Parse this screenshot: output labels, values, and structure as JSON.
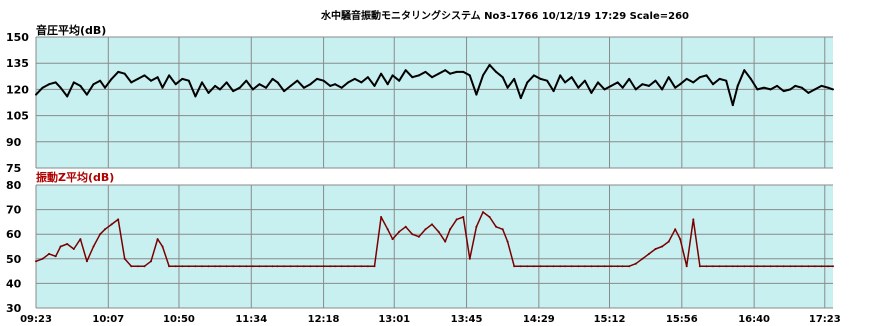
{
  "header": {
    "title": "水中騒音振動モニタリングシステム No3-1766 10/12/19 17:29 Scale=260"
  },
  "colors": {
    "plot_bg": "#c8f0f0",
    "grid": "#8a8a8a",
    "sound_line": "#000000",
    "sound_title": "#000000",
    "vib_line": "#7a0000",
    "vib_title": "#b00000"
  },
  "chart_data": [
    {
      "type": "line",
      "title": "音圧平均(dB)",
      "ylim": [
        75,
        150
      ],
      "yticks": [
        "150",
        "135",
        "120",
        "105",
        "90",
        "75"
      ],
      "xticks": [
        "09:23",
        "10:07",
        "10:50",
        "11:34",
        "12:18",
        "13:01",
        "13:45",
        "14:29",
        "15:12",
        "15:56",
        "16:40",
        "17:23"
      ],
      "x_range": [
        "09:23",
        "17:28"
      ],
      "grid": true,
      "series": [
        {
          "x": [
            "09:23",
            "09:27",
            "09:31",
            "09:35",
            "09:38",
            "09:42",
            "09:46",
            "09:50",
            "09:54",
            "09:58",
            "10:02",
            "10:05",
            "10:09",
            "10:13",
            "10:17",
            "10:21",
            "10:25",
            "10:29",
            "10:33",
            "10:37",
            "10:40",
            "10:44",
            "10:48",
            "10:52",
            "10:56",
            "11:00",
            "11:04",
            "11:08",
            "11:12",
            "11:15",
            "11:19",
            "11:23",
            "11:27",
            "11:31",
            "11:35",
            "11:39",
            "11:43",
            "11:47",
            "11:50",
            "11:54",
            "11:58",
            "12:02",
            "12:06",
            "12:10",
            "12:14",
            "12:18",
            "12:22",
            "12:25",
            "12:29",
            "12:33",
            "12:37",
            "12:41",
            "12:45",
            "12:49",
            "12:53",
            "12:57",
            "13:00",
            "13:04",
            "13:08",
            "13:12",
            "13:16",
            "13:20",
            "13:24",
            "13:28",
            "13:32",
            "13:35",
            "13:39",
            "13:43",
            "13:47",
            "13:51",
            "13:55",
            "13:59",
            "14:03",
            "14:07",
            "14:10",
            "14:14",
            "14:18",
            "14:22",
            "14:26",
            "14:30",
            "14:34",
            "14:38",
            "14:42",
            "14:45",
            "14:49",
            "14:53",
            "14:57",
            "15:01",
            "15:05",
            "15:09",
            "15:13",
            "15:17",
            "15:20",
            "15:24",
            "15:28",
            "15:32",
            "15:36",
            "15:40",
            "15:44",
            "15:48",
            "15:52",
            "15:55",
            "15:59",
            "16:03",
            "16:07",
            "16:11",
            "16:15",
            "16:19",
            "16:23",
            "16:27",
            "16:30",
            "16:34",
            "16:38",
            "16:42",
            "16:46",
            "16:50",
            "16:54",
            "16:58",
            "17:02",
            "17:05",
            "17:09",
            "17:13",
            "17:17",
            "17:21",
            "17:25",
            "17:28"
          ],
          "y": [
            117,
            121,
            123,
            124,
            121,
            116,
            124,
            122,
            117,
            123,
            125,
            121,
            126,
            130,
            129,
            124,
            126,
            128,
            125,
            127,
            121,
            128,
            123,
            126,
            125,
            116,
            124,
            118,
            122,
            120,
            124,
            119,
            121,
            125,
            120,
            123,
            121,
            126,
            124,
            119,
            122,
            125,
            121,
            123,
            126,
            125,
            122,
            123,
            121,
            124,
            126,
            124,
            127,
            122,
            129,
            123,
            128,
            125,
            131,
            127,
            128,
            130,
            127,
            129,
            131,
            129,
            130,
            130,
            128,
            117,
            128,
            134,
            130,
            127,
            121,
            126,
            115,
            124,
            128,
            126,
            125,
            119,
            128,
            124,
            127,
            121,
            125,
            118,
            124,
            120,
            122,
            124,
            121,
            126,
            120,
            123,
            122,
            125,
            120,
            127,
            121,
            123,
            126,
            124,
            127,
            128,
            123,
            126,
            125,
            111,
            122,
            131,
            126,
            120,
            121,
            120,
            122,
            119,
            120,
            122,
            121,
            118,
            120,
            122,
            121,
            120
          ]
        }
      ]
    },
    {
      "type": "line",
      "title": "振動Z平均(dB)",
      "ylim": [
        30,
        80
      ],
      "yticks": [
        "80",
        "70",
        "60",
        "50",
        "40",
        "30"
      ],
      "xticks": [
        "09:23",
        "10:07",
        "10:50",
        "11:34",
        "12:18",
        "13:01",
        "13:45",
        "14:29",
        "15:12",
        "15:56",
        "16:40",
        "17:23"
      ],
      "x_range": [
        "09:23",
        "17:28"
      ],
      "grid": true,
      "series": [
        {
          "x": [
            "09:23",
            "09:27",
            "09:31",
            "09:35",
            "09:38",
            "09:42",
            "09:46",
            "09:50",
            "09:54",
            "09:58",
            "10:02",
            "10:05",
            "10:09",
            "10:13",
            "10:17",
            "10:21",
            "10:25",
            "10:29",
            "10:33",
            "10:37",
            "10:40",
            "10:44",
            "10:48",
            "10:52",
            "10:56",
            "11:00",
            "11:04",
            "11:08",
            "11:12",
            "11:15",
            "11:19",
            "11:23",
            "11:27",
            "11:31",
            "11:35",
            "11:39",
            "11:43",
            "11:47",
            "11:50",
            "11:54",
            "11:58",
            "12:02",
            "12:06",
            "12:10",
            "12:14",
            "12:18",
            "12:22",
            "12:25",
            "12:29",
            "12:33",
            "12:37",
            "12:41",
            "12:45",
            "12:49",
            "12:53",
            "12:57",
            "13:00",
            "13:04",
            "13:08",
            "13:12",
            "13:16",
            "13:20",
            "13:24",
            "13:28",
            "13:32",
            "13:35",
            "13:39",
            "13:43",
            "13:47",
            "13:51",
            "13:55",
            "13:59",
            "14:03",
            "14:07",
            "14:10",
            "14:14",
            "14:18",
            "14:22",
            "14:26",
            "14:30",
            "14:34",
            "14:38",
            "14:42",
            "14:45",
            "14:49",
            "14:53",
            "14:57",
            "15:01",
            "15:05",
            "15:09",
            "15:13",
            "15:17",
            "15:20",
            "15:24",
            "15:28",
            "15:32",
            "15:36",
            "15:40",
            "15:44",
            "15:48",
            "15:52",
            "15:55",
            "15:59",
            "16:03",
            "16:07",
            "16:11",
            "16:15",
            "16:19",
            "16:23",
            "16:27",
            "16:30",
            "16:34",
            "16:38",
            "16:42",
            "16:46",
            "16:50",
            "16:54",
            "16:58",
            "17:02",
            "17:05",
            "17:09",
            "17:13",
            "17:17",
            "17:21",
            "17:25",
            "17:28"
          ],
          "y": [
            49,
            50,
            52,
            51,
            55,
            56,
            54,
            58,
            49,
            55,
            60,
            62,
            64,
            66,
            50,
            47,
            47,
            47,
            49,
            58,
            55,
            47,
            47,
            47,
            47,
            47,
            47,
            47,
            47,
            47,
            47,
            47,
            47,
            47,
            47,
            47,
            47,
            47,
            47,
            47,
            47,
            47,
            47,
            47,
            47,
            47,
            47,
            47,
            47,
            47,
            47,
            47,
            47,
            47,
            67,
            62,
            58,
            61,
            63,
            60,
            59,
            62,
            64,
            61,
            57,
            62,
            66,
            67,
            50,
            63,
            69,
            67,
            63,
            62,
            57,
            47,
            47,
            47,
            47,
            47,
            47,
            47,
            47,
            47,
            47,
            47,
            47,
            47,
            47,
            47,
            47,
            47,
            47,
            47,
            48,
            50,
            52,
            54,
            55,
            57,
            62,
            58,
            47,
            66,
            47,
            47,
            47,
            47,
            47,
            47,
            47,
            47,
            47,
            47,
            47,
            47,
            47,
            47,
            47,
            47,
            47,
            47,
            47,
            47,
            47,
            47
          ]
        }
      ]
    }
  ]
}
